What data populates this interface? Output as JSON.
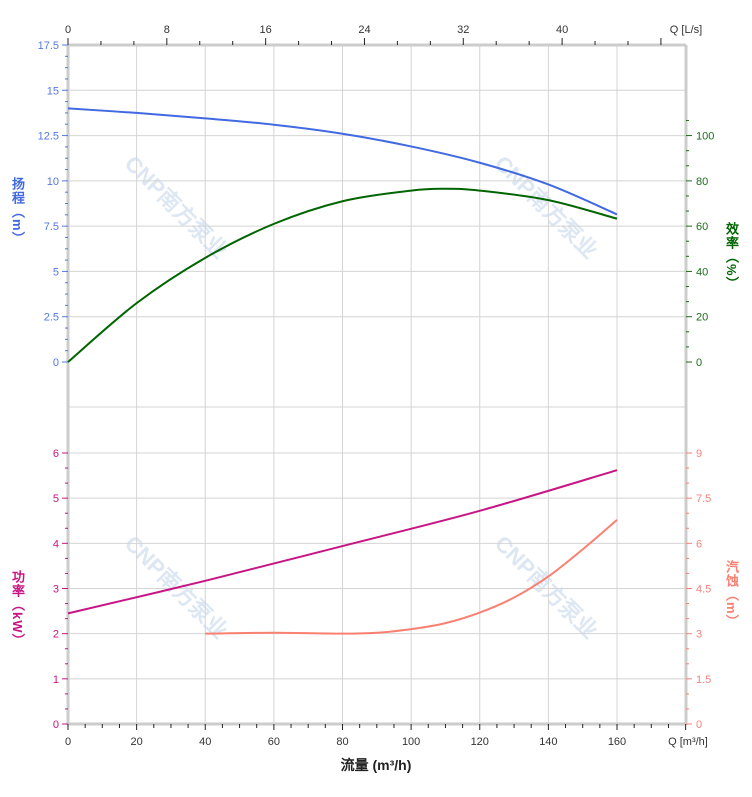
{
  "watermark": "CNP南方泵业",
  "chart_data": [
    {
      "type": "line",
      "panel": "upper",
      "x_label": "Q [m³/h]",
      "x_top_label": "Q [L/s]",
      "xlim": [
        0,
        180
      ],
      "x_ticks": [
        0,
        20,
        40,
        60,
        80,
        100,
        120,
        140,
        160
      ],
      "x_top_ticks": [
        0,
        8,
        16,
        24,
        32,
        40
      ],
      "grid": true,
      "axes": {
        "left": {
          "label": "扬程（m）",
          "ylim": [
            0,
            17.5
          ],
          "ticks": [
            "0",
            "2.5",
            "5",
            "7.5",
            "10",
            "12.5",
            "15",
            "17.5"
          ],
          "color": "#4169e1"
        },
        "right": {
          "label": "效率（%）",
          "ylim": [
            0,
            125
          ],
          "ticks": [
            "0",
            "20",
            "40",
            "60",
            "80",
            "100"
          ],
          "color": "#006400"
        }
      },
      "series": [
        {
          "axis": "left",
          "color": "#4169e1",
          "x": [
            0,
            20,
            40,
            60,
            80,
            100,
            120,
            140,
            160
          ],
          "y": [
            14.0,
            13.75,
            13.45,
            13.1,
            12.6,
            11.9,
            11.0,
            9.8,
            8.15
          ]
        },
        {
          "axis": "right",
          "color": "#006400",
          "x": [
            0,
            20,
            40,
            60,
            80,
            100,
            110,
            120,
            140,
            160
          ],
          "y": [
            0,
            26,
            46,
            61,
            71,
            75.7,
            76.5,
            75.7,
            71.5,
            63.3
          ]
        }
      ]
    },
    {
      "type": "line",
      "panel": "lower",
      "x_label": "Q [m³/h]",
      "xlim": [
        0,
        180
      ],
      "x_ticks": [
        0,
        20,
        40,
        60,
        80,
        100,
        120,
        140,
        160
      ],
      "grid": true,
      "axes": {
        "left": {
          "label": "功率（kW）",
          "ylim": [
            0,
            6
          ],
          "ticks": [
            "0",
            "1",
            "2",
            "3",
            "4",
            "5",
            "6"
          ],
          "color": "#c71585"
        },
        "right": {
          "label": "汽蚀（m）",
          "ylim": [
            0,
            9
          ],
          "ticks": [
            "0",
            "1.5",
            "3",
            "4.5",
            "6",
            "7.5",
            "9"
          ],
          "color": "#fa8072"
        }
      },
      "series": [
        {
          "axis": "left",
          "color": "#c71585",
          "x": [
            0,
            40,
            80,
            120,
            160
          ],
          "y": [
            2.45,
            3.17,
            3.94,
            4.72,
            5.62
          ]
        },
        {
          "axis": "right",
          "color": "#fa8072",
          "x": [
            40,
            60,
            80,
            90,
            100,
            110,
            120,
            130,
            140,
            150,
            160
          ],
          "y": [
            3.0,
            3.03,
            3.0,
            3.03,
            3.15,
            3.35,
            3.7,
            4.2,
            4.9,
            5.8,
            6.78
          ]
        }
      ]
    }
  ],
  "x_axis_title": "流量 (m³/h)"
}
